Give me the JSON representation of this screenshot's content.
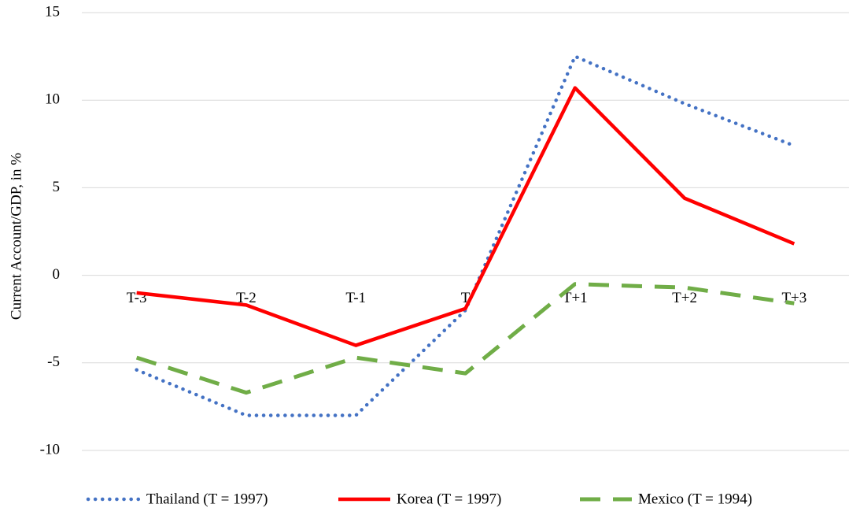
{
  "chart_data": {
    "type": "line",
    "y_label": "Current Account/GDP, in %",
    "categories": [
      "T-3",
      "T-2",
      "T-1",
      "T",
      "T+1",
      "T+2",
      "T+3"
    ],
    "series": [
      {
        "name": "Thailand (T = 1997)",
        "color": "#4472c4",
        "style": "dotted",
        "values": [
          -5.4,
          -8.0,
          -8.0,
          -2.0,
          12.5,
          9.8,
          7.4
        ]
      },
      {
        "name": "Korea (T = 1997)",
        "color": "#ff0000",
        "style": "solid",
        "values": [
          -1.0,
          -1.7,
          -4.0,
          -1.9,
          10.7,
          4.4,
          1.8
        ]
      },
      {
        "name": "Mexico (T = 1994)",
        "color": "#70ad47",
        "style": "dashed",
        "values": [
          -4.7,
          -6.7,
          -4.7,
          -5.6,
          -0.5,
          -0.7,
          -1.6
        ]
      }
    ],
    "ylim": [
      -10,
      15
    ],
    "yticks": [
      -10,
      -5,
      0,
      5,
      10,
      15
    ],
    "grid": true,
    "legend": "bottom"
  }
}
